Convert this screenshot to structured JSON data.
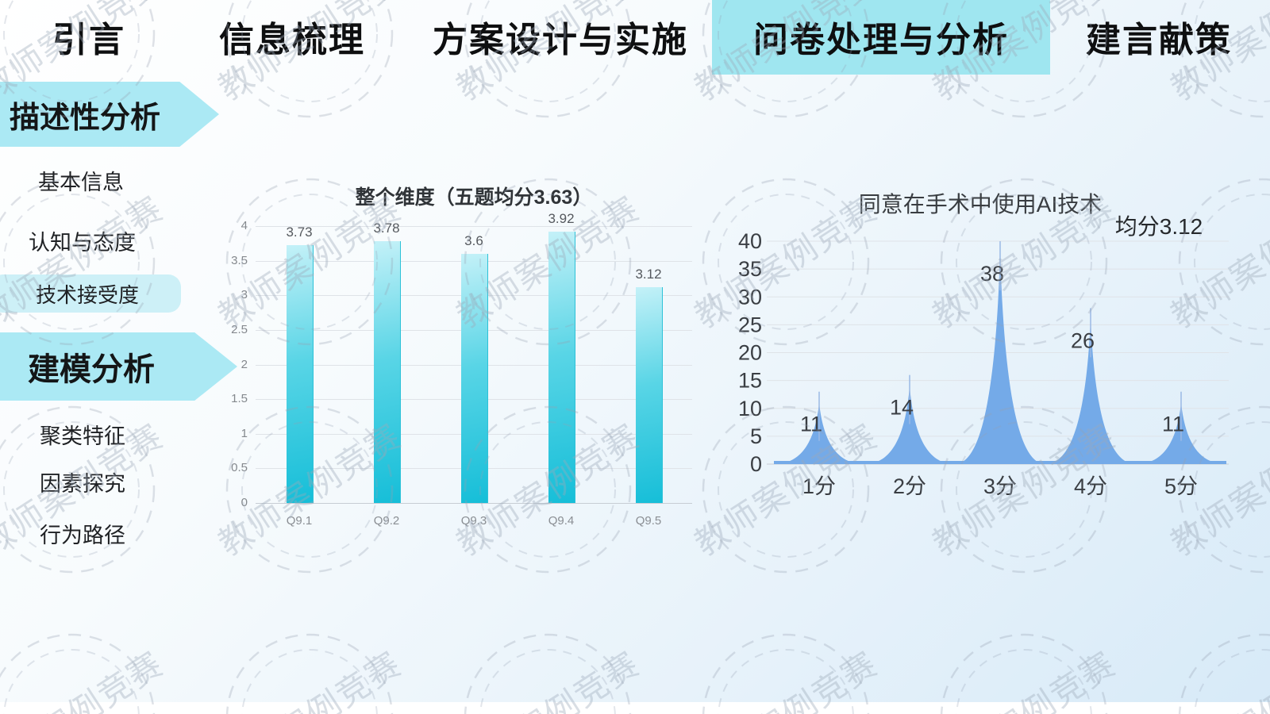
{
  "tabs": [
    {
      "label": "引言",
      "active": false
    },
    {
      "label": "信息梳理",
      "active": false
    },
    {
      "label": "方案设计与实施",
      "active": false
    },
    {
      "label": "问卷处理与分析",
      "active": true
    },
    {
      "label": "建言献策",
      "active": false
    }
  ],
  "sidebar": {
    "section1_label": "描述性分析",
    "section1_items": [
      {
        "label": "基本信息",
        "active": false
      },
      {
        "label": "认知与态度",
        "active": false
      },
      {
        "label": "技术接受度",
        "active": true
      }
    ],
    "section2_label": "建模分析",
    "section2_items": [
      {
        "label": "聚类特征",
        "active": false
      },
      {
        "label": "因素探究",
        "active": false
      },
      {
        "label": "行为路径",
        "active": false
      }
    ]
  },
  "watermark_text": "教师案例竞赛",
  "colors": {
    "tab_highlight": "#9fe6f0",
    "sidebar_arrow": "#abe9f4",
    "sidebar_pill": "#cdf0f7",
    "bar_top": "#c4f1f8",
    "bar_bottom": "#16bed8",
    "area_fill": "#74aae8",
    "gridline": "#dfe3e8",
    "background_end": "#d7eaf8"
  },
  "chart_data": [
    {
      "type": "bar",
      "title": "整个维度（五题均分3.63）",
      "categories": [
        "Q9.1",
        "Q9.2",
        "Q9.3",
        "Q9.4",
        "Q9.5"
      ],
      "values": [
        3.73,
        3.78,
        3.6,
        3.92,
        3.12
      ],
      "data_labels": [
        "3.73",
        "3.78",
        "3.6",
        "3.92",
        "3.12"
      ],
      "xlabel": "",
      "ylabel": "",
      "ylim": [
        0,
        4
      ],
      "yticks": [
        0,
        0.5,
        1,
        1.5,
        2,
        2.5,
        3,
        3.5,
        4
      ],
      "grid": true,
      "legend": "none"
    },
    {
      "type": "area",
      "title": "同意在手术中使用AI技术",
      "subtitle": "均分3.12",
      "categories": [
        "1分",
        "2分",
        "3分",
        "4分",
        "5分"
      ],
      "values": [
        11,
        14,
        38,
        26,
        11
      ],
      "data_labels": [
        "11",
        "14",
        "38",
        "26",
        "11"
      ],
      "xlabel": "",
      "ylabel": "",
      "ylim": [
        0,
        40
      ],
      "yticks": [
        0,
        5,
        10,
        15,
        20,
        25,
        30,
        35,
        40
      ],
      "grid": true,
      "legend": "none"
    }
  ]
}
